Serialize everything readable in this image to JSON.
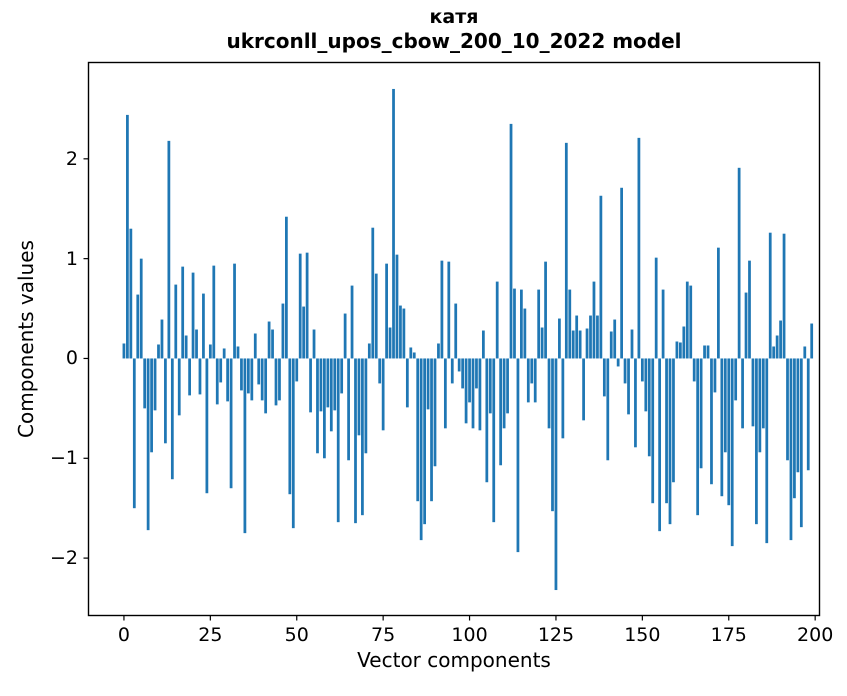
{
  "figure": {
    "background": "#ffffff"
  },
  "chart_data": {
    "type": "bar",
    "title_line1": "катя",
    "title_line2": "ukrconll_upos_cbow_200_10_2022 model",
    "xlabel": "Vector components",
    "ylabel": "Components values",
    "x_ticks": [
      0,
      25,
      50,
      75,
      100,
      125,
      150,
      175,
      200
    ],
    "y_ticks": [
      2,
      1,
      0,
      -1,
      -2
    ],
    "xlim": [
      -10.4,
      201.4
    ],
    "ylim": [
      -2.58,
      2.97
    ],
    "grid": false,
    "legend_position": "none",
    "bar_color": "#1f77b4",
    "spine_color": "#000000",
    "n_components": 200,
    "x_start": 0,
    "values": [
      0.15,
      2.44,
      1.3,
      -1.5,
      0.64,
      1.0,
      -0.5,
      -1.72,
      -0.94,
      -0.52,
      0.14,
      0.39,
      -0.85,
      2.18,
      -1.21,
      0.74,
      -0.57,
      0.92,
      0.23,
      -0.37,
      0.86,
      0.29,
      -0.36,
      0.65,
      -1.35,
      0.14,
      0.93,
      -0.46,
      -0.24,
      0.1,
      -0.43,
      -1.3,
      0.95,
      0.12,
      -0.32,
      -1.75,
      -0.35,
      -0.42,
      0.25,
      -0.26,
      -0.42,
      -0.55,
      0.37,
      0.29,
      -0.47,
      -0.42,
      0.55,
      1.42,
      -1.36,
      -1.7,
      -0.23,
      1.05,
      0.52,
      1.06,
      -0.54,
      0.29,
      -0.95,
      -0.53,
      -1.0,
      -0.49,
      -0.73,
      -0.52,
      -1.64,
      -0.35,
      0.45,
      -1.02,
      0.73,
      -1.65,
      -0.77,
      -1.57,
      -0.95,
      0.15,
      1.31,
      0.85,
      -0.25,
      -0.72,
      0.95,
      0.31,
      2.7,
      1.04,
      0.53,
      0.5,
      -0.49,
      0.11,
      0.06,
      -1.43,
      -1.82,
      -1.66,
      -0.51,
      -1.43,
      -1.08,
      0.15,
      0.98,
      -0.7,
      0.97,
      -0.25,
      0.55,
      -0.13,
      -0.3,
      -0.65,
      -0.44,
      -0.7,
      -0.3,
      -0.72,
      0.28,
      -1.24,
      -0.55,
      -1.64,
      0.77,
      -1.07,
      -0.7,
      -0.55,
      2.35,
      0.7,
      -1.94,
      0.69,
      0.5,
      -0.44,
      -0.25,
      -0.44,
      0.69,
      0.31,
      0.97,
      -0.7,
      -1.53,
      -2.32,
      0.4,
      -0.8,
      2.16,
      0.69,
      0.28,
      0.43,
      0.28,
      -0.62,
      0.3,
      0.43,
      0.77,
      0.43,
      1.63,
      -0.38,
      -1.02,
      0.27,
      0.39,
      -0.08,
      1.71,
      -0.25,
      -0.56,
      0.29,
      -0.89,
      2.21,
      -0.23,
      -0.53,
      -0.98,
      -1.45,
      1.01,
      -1.73,
      0.69,
      -1.45,
      -1.66,
      -1.24,
      0.17,
      0.16,
      0.32,
      0.77,
      0.73,
      -0.23,
      -1.57,
      -1.1,
      0.13,
      0.13,
      -1.26,
      -0.34,
      1.11,
      -1.38,
      -0.94,
      -1.47,
      -1.88,
      -0.42,
      1.91,
      -0.7,
      0.66,
      0.98,
      -0.68,
      -1.66,
      -0.94,
      -0.7,
      -1.85,
      1.26,
      0.12,
      0.23,
      0.38,
      1.25,
      -1.02,
      -1.82,
      -1.4,
      -1.14,
      -1.69,
      0.12,
      -1.12,
      0.35
    ]
  }
}
